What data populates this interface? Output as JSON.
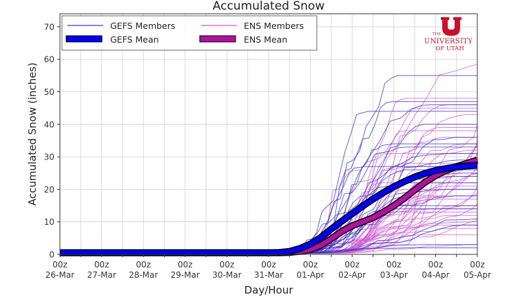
{
  "chart_data": {
    "type": "line",
    "title": "Accumulated Snow",
    "xlabel": "Day/Hour",
    "ylabel": "Accumulated Snow (inches)",
    "ylim": [
      0,
      74
    ],
    "yticks": [
      0,
      10,
      20,
      30,
      40,
      50,
      60,
      70
    ],
    "xlim_hours": [
      0,
      240
    ],
    "xticks": [
      {
        "hour": 0,
        "line1": "00z",
        "line2": "26-Mar"
      },
      {
        "hour": 24,
        "line1": "00z",
        "line2": "27-Mar"
      },
      {
        "hour": 48,
        "line1": "00z",
        "line2": "28-Mar"
      },
      {
        "hour": 72,
        "line1": "00z",
        "line2": "29-Mar"
      },
      {
        "hour": 96,
        "line1": "00z",
        "line2": "30-Mar"
      },
      {
        "hour": 120,
        "line1": "00z",
        "line2": "31-Mar"
      },
      {
        "hour": 144,
        "line1": "00z",
        "line2": "01-Apr"
      },
      {
        "hour": 168,
        "line1": "00z",
        "line2": "02-Apr"
      },
      {
        "hour": 192,
        "line1": "00z",
        "line2": "03-Apr"
      },
      {
        "hour": 216,
        "line1": "00z",
        "line2": "04-Apr"
      },
      {
        "hour": 240,
        "line1": "00z",
        "line2": "05-Apr"
      }
    ],
    "grid": true,
    "grid_x_step_hours": 12,
    "legend": {
      "position": "upper left",
      "entries": [
        {
          "label": "GEFS Members",
          "style": "thin",
          "color": "#3c3cc8"
        },
        {
          "label": "ENS Members",
          "style": "thin",
          "color": "#d05ad0"
        },
        {
          "label": "GEFS Mean",
          "style": "thick",
          "color": "#0000ee"
        },
        {
          "label": "ENS Mean",
          "style": "thick",
          "color": "#b0129e"
        }
      ]
    },
    "x_hours": [
      0,
      120,
      126,
      132,
      138,
      144,
      150,
      156,
      162,
      168,
      174,
      180,
      186,
      192,
      198,
      204,
      210,
      216,
      222,
      228,
      234,
      240
    ],
    "series": [
      {
        "name": "GEFS Mean",
        "values": [
          0.5,
          0.5,
          0.6,
          0.9,
          1.8,
          3.2,
          5.2,
          7.8,
          10.2,
          12.5,
          14.8,
          17.0,
          19.0,
          20.8,
          22.4,
          23.8,
          24.9,
          25.8,
          26.4,
          26.9,
          27.2,
          27.4
        ]
      },
      {
        "name": "ENS Mean",
        "values": [
          0.5,
          0.5,
          0.5,
          0.6,
          0.9,
          1.5,
          2.8,
          4.8,
          7.0,
          8.8,
          10.0,
          11.3,
          13.0,
          15.0,
          17.3,
          19.8,
          22.2,
          24.2,
          25.8,
          27.0,
          28.0,
          29.0
        ]
      }
    ],
    "members": {
      "gefs_color": "#3a3ac4",
      "ens_color": "#cc55cc",
      "gefs_final_values": [
        55,
        47,
        46,
        44,
        40,
        36,
        34,
        33,
        31,
        29,
        27,
        26,
        25,
        24,
        22,
        20,
        18,
        15,
        14,
        11,
        9,
        3,
        2
      ],
      "ens_final_values": [
        58.5,
        48,
        46,
        45,
        43,
        42,
        41,
        39,
        38,
        37,
        36,
        35,
        34,
        33,
        32,
        31,
        30,
        29,
        28,
        27,
        26,
        25,
        24,
        23,
        22,
        21,
        20,
        19,
        18,
        17,
        16,
        15,
        14,
        13,
        12,
        11,
        10,
        9,
        8,
        6,
        3
      ]
    }
  },
  "logo": {
    "the": "THE",
    "university": "UNIVERSITY",
    "of_utah": "OF UTAH",
    "letter": "U",
    "color": "#c8102e"
  }
}
